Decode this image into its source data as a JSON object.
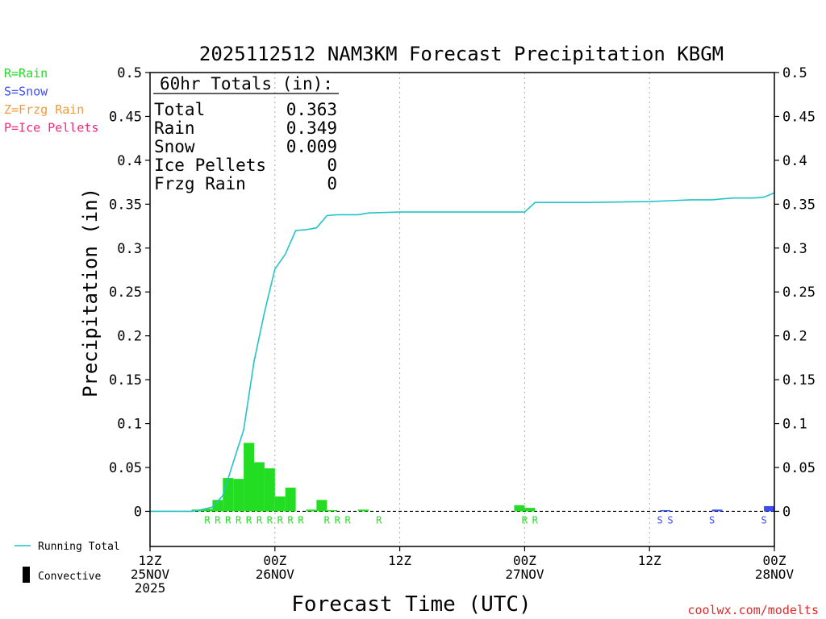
{
  "chart_data": {
    "type": "bar",
    "title": "2025112512 NAM3KM Forecast Precipitation KBGM",
    "xlabel": "Forecast Time (UTC)",
    "ylabel": "Precipitation (in)",
    "ylim": [
      -0.04,
      0.5
    ],
    "xlim_hours": [
      0,
      60
    ],
    "y_ticks": [
      0,
      0.05,
      0.1,
      0.15,
      0.2,
      0.25,
      0.3,
      0.35,
      0.4,
      0.45,
      0.5
    ],
    "y_tick_labels": [
      "0",
      "0.05",
      "0.1",
      "0.15",
      "0.2",
      "0.25",
      "0.3",
      "0.35",
      "0.4",
      "0.45",
      "0.5"
    ],
    "x_ticks": [
      {
        "hour": 0,
        "lines": [
          "12Z",
          "25NOV",
          "2025"
        ]
      },
      {
        "hour": 12,
        "lines": [
          "00Z",
          "26NOV"
        ]
      },
      {
        "hour": 24,
        "lines": [
          "12Z"
        ]
      },
      {
        "hour": 36,
        "lines": [
          "00Z",
          "27NOV"
        ]
      },
      {
        "hour": 48,
        "lines": [
          "12Z"
        ]
      },
      {
        "hour": 60,
        "lines": [
          "00Z",
          "28NOV"
        ]
      }
    ],
    "dotted_grid_hours": [
      12,
      24,
      36,
      48
    ],
    "precip_type_legend": [
      {
        "code": "R",
        "label": "R=Rain",
        "color": "#22dd22"
      },
      {
        "code": "S",
        "label": "S=Snow",
        "color": "#3a4ef0"
      },
      {
        "code": "Z",
        "label": "Z=Frzg Rain",
        "color": "#f59a3a"
      },
      {
        "code": "P",
        "label": "P=Ice Pellets",
        "color": "#f0287a"
      }
    ],
    "series": [
      {
        "name": "Hourly Precipitation",
        "bars": [
          {
            "hour": 5,
            "value": 0.002,
            "type": "R"
          },
          {
            "hour": 6,
            "value": 0.003,
            "type": "R"
          },
          {
            "hour": 7,
            "value": 0.013,
            "type": "R"
          },
          {
            "hour": 8,
            "value": 0.038,
            "type": "R"
          },
          {
            "hour": 9,
            "value": 0.037,
            "type": "R"
          },
          {
            "hour": 10,
            "value": 0.078,
            "type": "R"
          },
          {
            "hour": 11,
            "value": 0.056,
            "type": "R"
          },
          {
            "hour": 12,
            "value": 0.049,
            "type": "R"
          },
          {
            "hour": 13,
            "value": 0.017,
            "type": "R"
          },
          {
            "hour": 14,
            "value": 0.027,
            "type": "R"
          },
          {
            "hour": 16,
            "value": 0.002,
            "type": "R"
          },
          {
            "hour": 17,
            "value": 0.013,
            "type": "R"
          },
          {
            "hour": 18,
            "value": 0.001,
            "type": "R"
          },
          {
            "hour": 21,
            "value": 0.002,
            "type": "R"
          },
          {
            "hour": 36,
            "value": 0.007,
            "type": "R"
          },
          {
            "hour": 37,
            "value": 0.004,
            "type": "R"
          },
          {
            "hour": 50,
            "value": 0.001,
            "type": "S"
          },
          {
            "hour": 55,
            "value": 0.002,
            "type": "S"
          },
          {
            "hour": 60,
            "value": 0.006,
            "type": "S"
          }
        ]
      },
      {
        "name": "Running Total",
        "x": [
          0,
          2,
          4,
          5,
          6,
          7,
          8,
          9,
          10,
          11,
          12,
          13,
          14,
          15,
          16,
          17,
          18,
          20,
          21,
          24,
          30,
          36,
          37,
          42,
          48,
          50,
          52,
          54,
          56,
          58,
          59,
          60
        ],
        "values": [
          0,
          0,
          0,
          0.002,
          0.005,
          0.018,
          0.056,
          0.093,
          0.171,
          0.227,
          0.276,
          0.293,
          0.32,
          0.321,
          0.323,
          0.337,
          0.338,
          0.338,
          0.34,
          0.341,
          0.341,
          0.341,
          0.352,
          0.352,
          0.353,
          0.354,
          0.355,
          0.355,
          0.357,
          0.357,
          0.358,
          0.363
        ]
      }
    ],
    "type_markers": [
      {
        "hour": 5.5,
        "type": "R"
      },
      {
        "hour": 6.5,
        "type": "R"
      },
      {
        "hour": 7.5,
        "type": "R"
      },
      {
        "hour": 8.5,
        "type": "R"
      },
      {
        "hour": 9.5,
        "type": "R"
      },
      {
        "hour": 10.5,
        "type": "R"
      },
      {
        "hour": 11.5,
        "type": "R"
      },
      {
        "hour": 12.5,
        "type": "R"
      },
      {
        "hour": 13.5,
        "type": "R"
      },
      {
        "hour": 14.5,
        "type": "R"
      },
      {
        "hour": 17,
        "type": "R"
      },
      {
        "hour": 18,
        "type": "R"
      },
      {
        "hour": 19,
        "type": "R"
      },
      {
        "hour": 22,
        "type": "R"
      },
      {
        "hour": 36,
        "type": "R"
      },
      {
        "hour": 37,
        "type": "R"
      },
      {
        "hour": 49,
        "type": "S"
      },
      {
        "hour": 50,
        "type": "S"
      },
      {
        "hour": 54,
        "type": "S"
      },
      {
        "hour": 59,
        "type": "S"
      }
    ],
    "totals_box": {
      "heading": "60hr Totals (in):",
      "rows": [
        {
          "label": "Total",
          "value": "0.363"
        },
        {
          "label": "Rain",
          "value": "0.349"
        },
        {
          "label": "Snow",
          "value": "0.009"
        },
        {
          "label": "Ice Pellets",
          "value": "0"
        },
        {
          "label": "Frzg Rain",
          "value": "0"
        }
      ]
    },
    "bottom_legend": [
      {
        "label": "Running Total",
        "color": "#22c4c8"
      },
      {
        "label": "Convective",
        "color": "#000000"
      }
    ],
    "credit": "coolwx.com/modelts"
  }
}
